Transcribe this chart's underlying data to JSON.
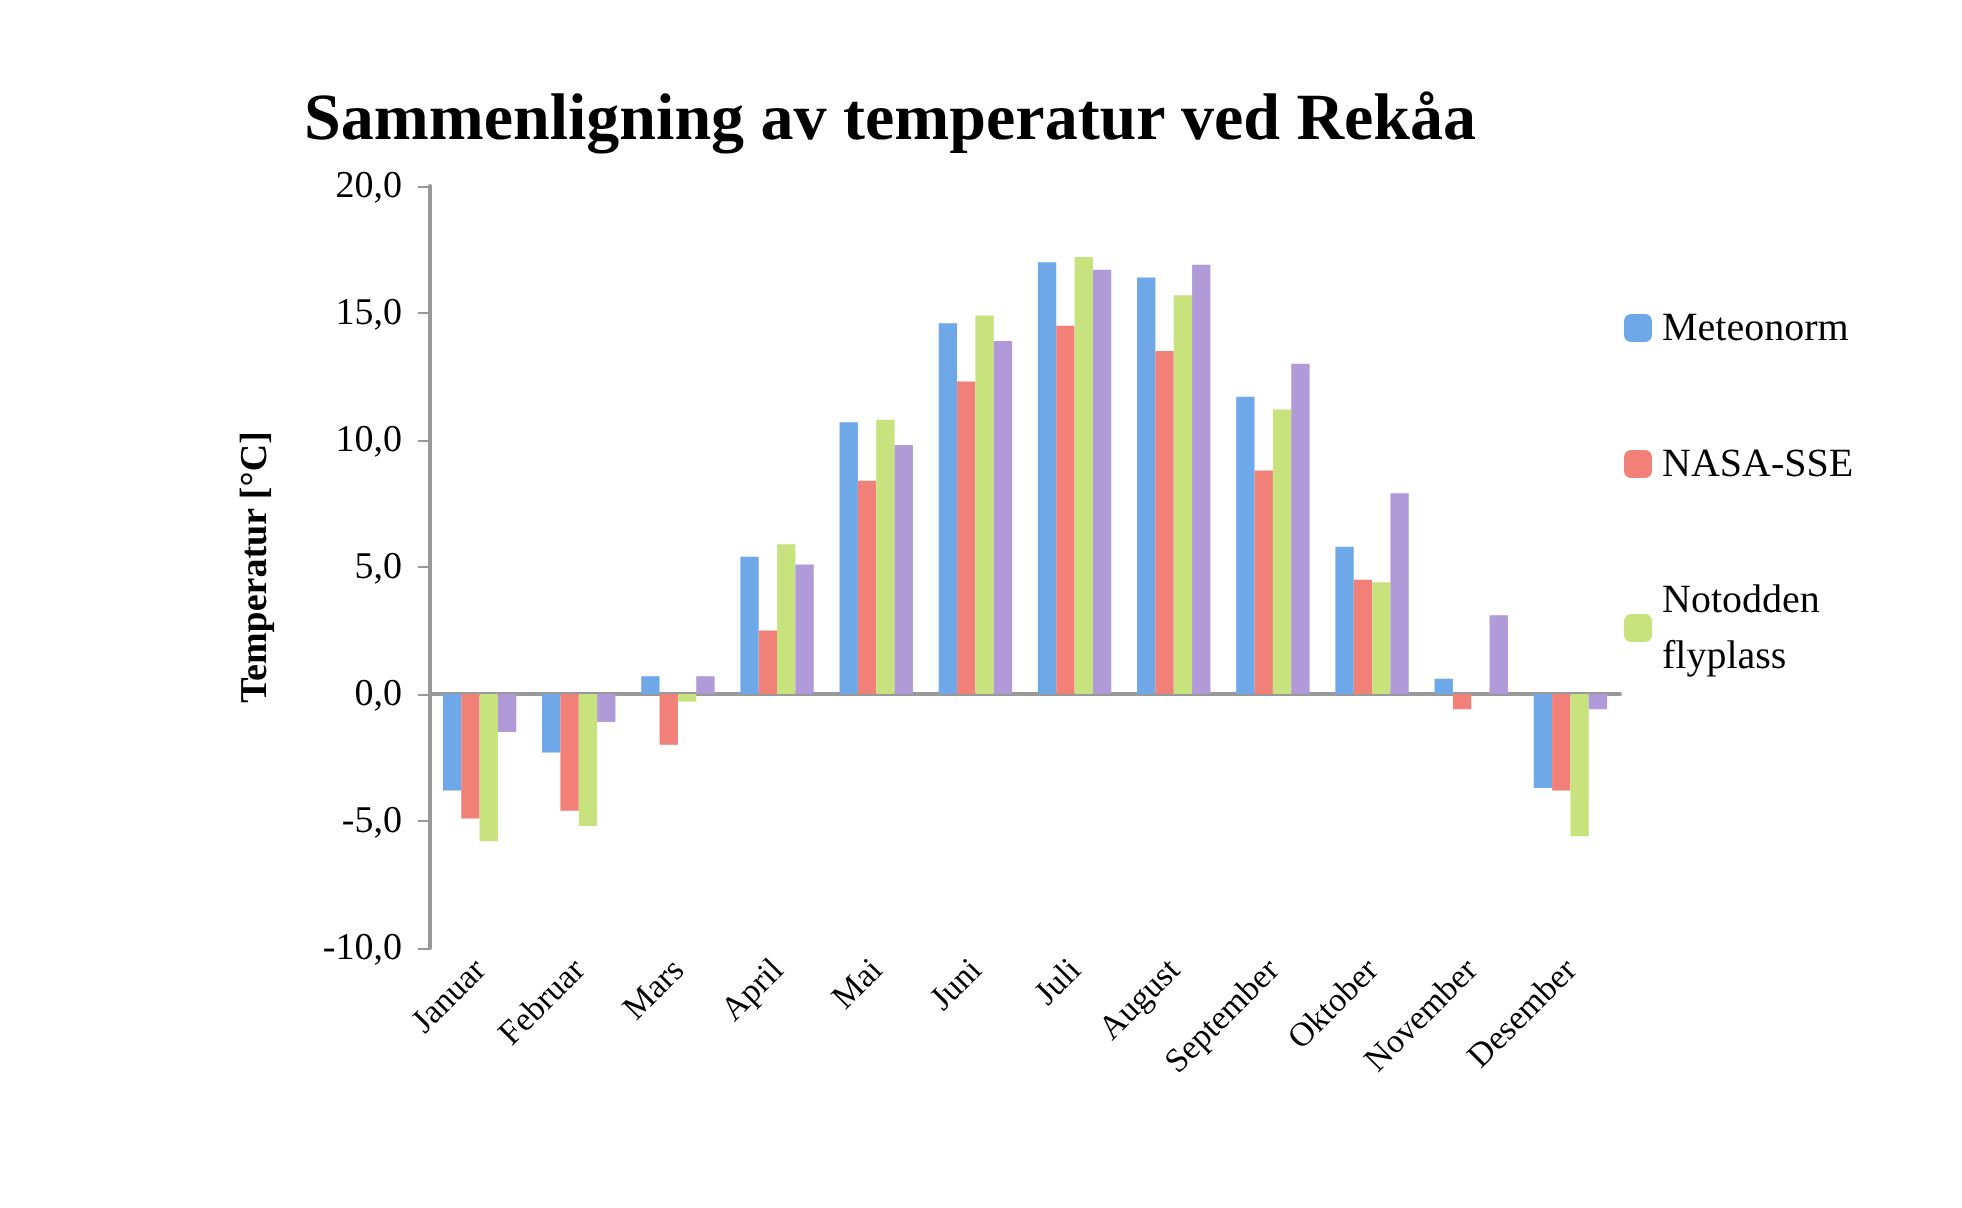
{
  "chart_data": {
    "type": "bar",
    "title": "Sammenligning av temperatur ved Rekåa",
    "ylabel": "Temperatur [°C]",
    "categories": [
      "Januar",
      "Februar",
      "Mars",
      "April",
      "Mai",
      "Juni",
      "Juli",
      "August",
      "September",
      "Oktober",
      "November",
      "Desember"
    ],
    "series": [
      {
        "name": "Meteonorm",
        "color": "#6fa8e8",
        "values": [
          -3.8,
          -2.3,
          0.7,
          5.4,
          10.7,
          14.6,
          17.0,
          16.4,
          11.7,
          5.8,
          0.6,
          -3.7
        ]
      },
      {
        "name": "NASA-SSE",
        "color": "#f08078",
        "values": [
          -4.9,
          -4.6,
          -2.0,
          2.5,
          8.4,
          12.3,
          14.5,
          13.5,
          8.8,
          4.5,
          -0.6,
          -3.8
        ]
      },
      {
        "name": "Notodden flyplass",
        "color": "#c8e27e",
        "values": [
          -5.8,
          -5.2,
          -0.3,
          5.9,
          10.8,
          14.9,
          17.2,
          15.7,
          11.2,
          4.4,
          0.0,
          -5.6
        ]
      },
      {
        "color": "#b09ad8",
        "values": [
          -1.5,
          -1.1,
          0.7,
          5.1,
          9.8,
          13.9,
          16.7,
          16.9,
          13.0,
          7.9,
          3.1,
          -0.6
        ]
      }
    ],
    "ylim": [
      -10,
      20
    ],
    "yticks": [
      {
        "value": -10,
        "label": "-10,0"
      },
      {
        "value": -5,
        "label": "-5,0"
      },
      {
        "value": 0,
        "label": "0,0"
      },
      {
        "value": 5,
        "label": "5,0"
      },
      {
        "value": 10,
        "label": "10,0"
      },
      {
        "value": 15,
        "label": "15,0"
      },
      {
        "value": 20,
        "label": "20,0"
      }
    ],
    "legend": "right"
  }
}
